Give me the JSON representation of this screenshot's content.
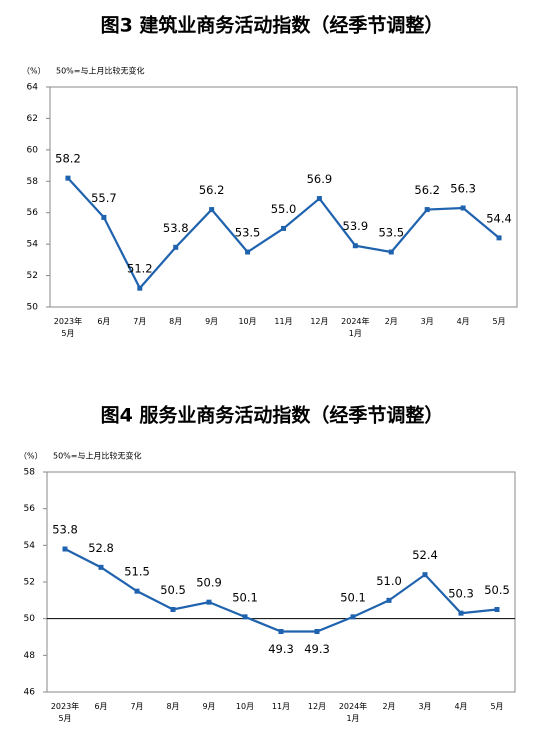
{
  "chart_data": [
    {
      "type": "line",
      "title": "图3  建筑业商务活动指数（经季节调整）",
      "unit": "（%）",
      "note": "50%=与上月比较无变化",
      "categories": [
        "2023年\n5月",
        "6月",
        "7月",
        "8月",
        "9月",
        "10月",
        "11月",
        "12月",
        "2024年\n1月",
        "2月",
        "3月",
        "4月",
        "5月"
      ],
      "series": [
        {
          "color": "#1f62ae",
          "values": [
            58.2,
            55.7,
            51.2,
            53.8,
            56.2,
            53.5,
            55.0,
            56.9,
            53.9,
            53.5,
            56.2,
            56.3,
            54.4
          ],
          "value_labels": [
            "58.2",
            "55.7",
            "51.2",
            "53.8",
            "56.2",
            "53.5",
            "55.0",
            "56.9",
            "53.9",
            "53.5",
            "56.2",
            "56.3",
            "54.4"
          ]
        }
      ],
      "ylim": [
        50,
        64
      ],
      "yticks": [
        50,
        52,
        54,
        56,
        58,
        60,
        62,
        64
      ],
      "grid": false
    },
    {
      "type": "line",
      "title": "图4  服务业商务活动指数（经季节调整）",
      "unit": "（%）",
      "note": "50%=与上月比较无变化",
      "categories": [
        "2023年\n5月",
        "6月",
        "7月",
        "8月",
        "9月",
        "10月",
        "11月",
        "12月",
        "2024年\n1月",
        "2月",
        "3月",
        "4月",
        "5月"
      ],
      "series": [
        {
          "color": "#1f62ae",
          "values": [
            53.8,
            52.8,
            51.5,
            50.5,
            50.9,
            50.1,
            49.3,
            49.3,
            50.1,
            51.0,
            52.4,
            50.3,
            50.5
          ],
          "value_labels": [
            "53.8",
            "52.8",
            "51.5",
            "50.5",
            "50.9",
            "50.1",
            "49.3",
            "49.3",
            "50.1",
            "51.0",
            "52.4",
            "50.3",
            "50.5"
          ]
        }
      ],
      "ylim": [
        46,
        58
      ],
      "yticks": [
        46,
        48,
        50,
        52,
        54,
        56,
        58
      ],
      "hline": 50,
      "grid": false
    }
  ]
}
